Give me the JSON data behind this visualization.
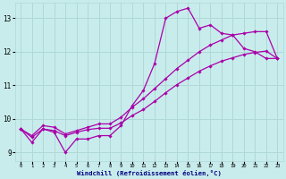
{
  "bg_color": "#c8ecec",
  "grid_color": "#b0d8d8",
  "line_color": "#aa00aa",
  "xlabel": "Windchill (Refroidissement éolien,°C)",
  "xlim": [
    -0.5,
    23.5
  ],
  "ylim": [
    8.75,
    13.45
  ],
  "yticks": [
    9,
    10,
    11,
    12,
    13
  ],
  "xticks": [
    0,
    1,
    2,
    3,
    4,
    5,
    6,
    7,
    8,
    9,
    10,
    11,
    12,
    13,
    14,
    15,
    16,
    17,
    18,
    19,
    20,
    21,
    22,
    23
  ],
  "line1_x": [
    0,
    1,
    2,
    3,
    4,
    5,
    6,
    7,
    8,
    9,
    10,
    11,
    12,
    13,
    14,
    15,
    16,
    17,
    18,
    19,
    20,
    21,
    22,
    23
  ],
  "line1_y": [
    9.7,
    9.3,
    9.7,
    9.6,
    9.0,
    9.4,
    9.4,
    9.5,
    9.5,
    9.8,
    10.4,
    10.85,
    11.65,
    13.0,
    13.2,
    13.3,
    12.7,
    12.8,
    12.55,
    12.5,
    12.1,
    12.0,
    11.8,
    11.8
  ],
  "line2_x": [
    0,
    1,
    2,
    3,
    4,
    5,
    6,
    7,
    8,
    9,
    10,
    11,
    12,
    13,
    14,
    15,
    16,
    17,
    18,
    19,
    20,
    21,
    22,
    23
  ],
  "line2_y": [
    9.7,
    9.5,
    9.8,
    9.75,
    9.55,
    9.65,
    9.75,
    9.85,
    9.85,
    10.05,
    10.35,
    10.6,
    10.9,
    11.2,
    11.5,
    11.75,
    12.0,
    12.2,
    12.35,
    12.5,
    12.55,
    12.6,
    12.6,
    11.8
  ],
  "line3_x": [
    0,
    1,
    2,
    3,
    4,
    5,
    6,
    7,
    8,
    9,
    10,
    11,
    12,
    13,
    14,
    15,
    16,
    17,
    18,
    19,
    20,
    21,
    22,
    23
  ],
  "line3_y": [
    9.7,
    9.45,
    9.7,
    9.65,
    9.5,
    9.6,
    9.68,
    9.72,
    9.72,
    9.88,
    10.1,
    10.28,
    10.52,
    10.78,
    11.02,
    11.22,
    11.42,
    11.58,
    11.72,
    11.82,
    11.92,
    11.98,
    12.02,
    11.8
  ]
}
